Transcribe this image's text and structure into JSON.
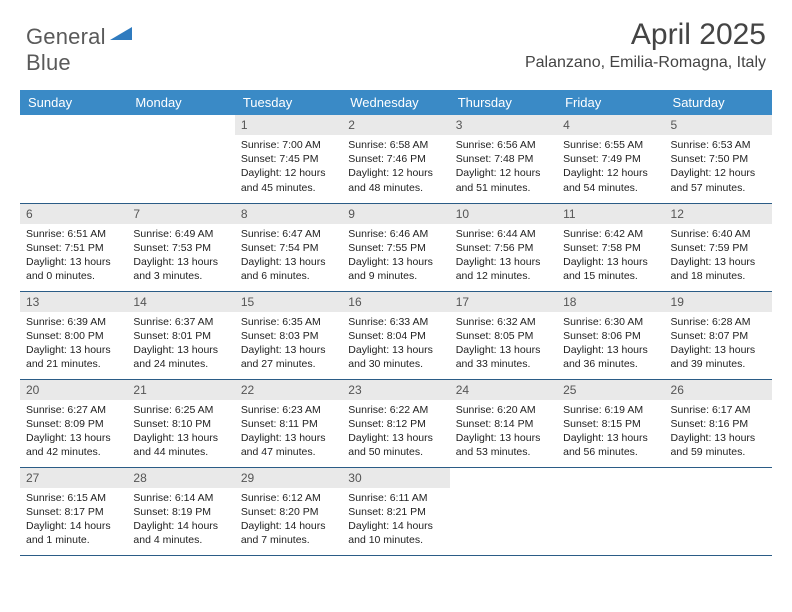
{
  "logo": {
    "line1": "General",
    "line2": "Blue"
  },
  "title": "April 2025",
  "location": "Palanzano, Emilia-Romagna, Italy",
  "colors": {
    "header_bg": "#3a8ac6",
    "header_text": "#ffffff",
    "daynum_bg": "#e9e9e9",
    "row_border": "#2b5c86",
    "title_color": "#444444",
    "body_text": "#222222",
    "logo_gray": "#5a5a5a",
    "logo_blue": "#2f7bbf"
  },
  "weekdays": [
    "Sunday",
    "Monday",
    "Tuesday",
    "Wednesday",
    "Thursday",
    "Friday",
    "Saturday"
  ],
  "weeks": [
    [
      {
        "empty": true
      },
      {
        "empty": true
      },
      {
        "num": "1",
        "sunrise": "7:00 AM",
        "sunset": "7:45 PM",
        "daylight": "12 hours and 45 minutes."
      },
      {
        "num": "2",
        "sunrise": "6:58 AM",
        "sunset": "7:46 PM",
        "daylight": "12 hours and 48 minutes."
      },
      {
        "num": "3",
        "sunrise": "6:56 AM",
        "sunset": "7:48 PM",
        "daylight": "12 hours and 51 minutes."
      },
      {
        "num": "4",
        "sunrise": "6:55 AM",
        "sunset": "7:49 PM",
        "daylight": "12 hours and 54 minutes."
      },
      {
        "num": "5",
        "sunrise": "6:53 AM",
        "sunset": "7:50 PM",
        "daylight": "12 hours and 57 minutes."
      }
    ],
    [
      {
        "num": "6",
        "sunrise": "6:51 AM",
        "sunset": "7:51 PM",
        "daylight": "13 hours and 0 minutes."
      },
      {
        "num": "7",
        "sunrise": "6:49 AM",
        "sunset": "7:53 PM",
        "daylight": "13 hours and 3 minutes."
      },
      {
        "num": "8",
        "sunrise": "6:47 AM",
        "sunset": "7:54 PM",
        "daylight": "13 hours and 6 minutes."
      },
      {
        "num": "9",
        "sunrise": "6:46 AM",
        "sunset": "7:55 PM",
        "daylight": "13 hours and 9 minutes."
      },
      {
        "num": "10",
        "sunrise": "6:44 AM",
        "sunset": "7:56 PM",
        "daylight": "13 hours and 12 minutes."
      },
      {
        "num": "11",
        "sunrise": "6:42 AM",
        "sunset": "7:58 PM",
        "daylight": "13 hours and 15 minutes."
      },
      {
        "num": "12",
        "sunrise": "6:40 AM",
        "sunset": "7:59 PM",
        "daylight": "13 hours and 18 minutes."
      }
    ],
    [
      {
        "num": "13",
        "sunrise": "6:39 AM",
        "sunset": "8:00 PM",
        "daylight": "13 hours and 21 minutes."
      },
      {
        "num": "14",
        "sunrise": "6:37 AM",
        "sunset": "8:01 PM",
        "daylight": "13 hours and 24 minutes."
      },
      {
        "num": "15",
        "sunrise": "6:35 AM",
        "sunset": "8:03 PM",
        "daylight": "13 hours and 27 minutes."
      },
      {
        "num": "16",
        "sunrise": "6:33 AM",
        "sunset": "8:04 PM",
        "daylight": "13 hours and 30 minutes."
      },
      {
        "num": "17",
        "sunrise": "6:32 AM",
        "sunset": "8:05 PM",
        "daylight": "13 hours and 33 minutes."
      },
      {
        "num": "18",
        "sunrise": "6:30 AM",
        "sunset": "8:06 PM",
        "daylight": "13 hours and 36 minutes."
      },
      {
        "num": "19",
        "sunrise": "6:28 AM",
        "sunset": "8:07 PM",
        "daylight": "13 hours and 39 minutes."
      }
    ],
    [
      {
        "num": "20",
        "sunrise": "6:27 AM",
        "sunset": "8:09 PM",
        "daylight": "13 hours and 42 minutes."
      },
      {
        "num": "21",
        "sunrise": "6:25 AM",
        "sunset": "8:10 PM",
        "daylight": "13 hours and 44 minutes."
      },
      {
        "num": "22",
        "sunrise": "6:23 AM",
        "sunset": "8:11 PM",
        "daylight": "13 hours and 47 minutes."
      },
      {
        "num": "23",
        "sunrise": "6:22 AM",
        "sunset": "8:12 PM",
        "daylight": "13 hours and 50 minutes."
      },
      {
        "num": "24",
        "sunrise": "6:20 AM",
        "sunset": "8:14 PM",
        "daylight": "13 hours and 53 minutes."
      },
      {
        "num": "25",
        "sunrise": "6:19 AM",
        "sunset": "8:15 PM",
        "daylight": "13 hours and 56 minutes."
      },
      {
        "num": "26",
        "sunrise": "6:17 AM",
        "sunset": "8:16 PM",
        "daylight": "13 hours and 59 minutes."
      }
    ],
    [
      {
        "num": "27",
        "sunrise": "6:15 AM",
        "sunset": "8:17 PM",
        "daylight": "14 hours and 1 minute."
      },
      {
        "num": "28",
        "sunrise": "6:14 AM",
        "sunset": "8:19 PM",
        "daylight": "14 hours and 4 minutes."
      },
      {
        "num": "29",
        "sunrise": "6:12 AM",
        "sunset": "8:20 PM",
        "daylight": "14 hours and 7 minutes."
      },
      {
        "num": "30",
        "sunrise": "6:11 AM",
        "sunset": "8:21 PM",
        "daylight": "14 hours and 10 minutes."
      },
      {
        "empty": true
      },
      {
        "empty": true
      },
      {
        "empty": true
      }
    ]
  ],
  "labels": {
    "sunrise": "Sunrise:",
    "sunset": "Sunset:",
    "daylight": "Daylight:"
  }
}
